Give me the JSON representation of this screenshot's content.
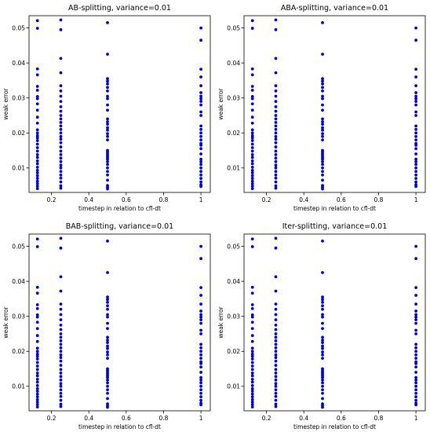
{
  "style": {
    "point_color": "#0000cc",
    "axis_color": "#000000",
    "background": "#ffffff"
  },
  "chart_data": [
    {
      "type": "scatter",
      "title": "AB-splitting, variance=0.01",
      "xlabel": "timestep in relation to cfl-dt",
      "ylabel": "weak error",
      "xlim": [
        0.08,
        1.05
      ],
      "ylim": [
        0.003,
        0.0535
      ],
      "xticks": [
        0.2,
        0.4,
        0.6,
        0.8,
        1.0
      ],
      "yticks": [
        0.01,
        0.02,
        0.03,
        0.04,
        0.05
      ],
      "grid": false,
      "series": [
        {
          "x": 0.125,
          "y": [
            0.0521,
            0.0499,
            0.0383,
            0.0366,
            0.0333,
            0.0322,
            0.0304,
            0.0298,
            0.0283,
            0.0265,
            0.0245,
            0.0228,
            0.0209,
            0.02,
            0.0192,
            0.0186,
            0.0178,
            0.0168,
            0.0158,
            0.0148,
            0.0138,
            0.013,
            0.012,
            0.0112,
            0.0102,
            0.0093,
            0.0086,
            0.0078,
            0.007,
            0.0062,
            0.0055,
            0.0048,
            0.0041
          ]
        },
        {
          "x": 0.25,
          "y": [
            0.0523,
            0.0495,
            0.0413,
            0.0372,
            0.0335,
            0.032,
            0.0305,
            0.029,
            0.0275,
            0.0262,
            0.025,
            0.024,
            0.023,
            0.022,
            0.021,
            0.02,
            0.019,
            0.0182,
            0.0172,
            0.016,
            0.0148,
            0.0138,
            0.0128,
            0.0118,
            0.0108,
            0.01,
            0.009,
            0.008,
            0.0071,
            0.006,
            0.0049,
            0.0042
          ]
        },
        {
          "x": 0.5,
          "y": [
            0.0515,
            0.0425,
            0.0355,
            0.0348,
            0.034,
            0.033,
            0.032,
            0.0305,
            0.0298,
            0.028,
            0.0265,
            0.024,
            0.0232,
            0.0225,
            0.0215,
            0.0208,
            0.0198,
            0.019,
            0.018,
            0.015,
            0.0145,
            0.014,
            0.0135,
            0.013,
            0.0125,
            0.0118,
            0.011,
            0.01,
            0.009,
            0.008,
            0.0065,
            0.005,
            0.0045,
            0.004
          ]
        },
        {
          "x": 1.0,
          "y": [
            0.05,
            0.0465,
            0.0382,
            0.036,
            0.0335,
            0.0315,
            0.0305,
            0.0298,
            0.029,
            0.028,
            0.026,
            0.025,
            0.022,
            0.021,
            0.02,
            0.019,
            0.018,
            0.017,
            0.0165,
            0.0155,
            0.014,
            0.0125,
            0.0118,
            0.011,
            0.01,
            0.009,
            0.008,
            0.007,
            0.006,
            0.0052,
            0.0047
          ]
        }
      ]
    },
    {
      "type": "scatter",
      "title": "ABA-splitting, variance=0.01",
      "xlabel": "timestep in relation to cfl-dt",
      "ylabel": "weak error",
      "xlim": [
        0.08,
        1.05
      ],
      "ylim": [
        0.003,
        0.0535
      ],
      "xticks": [
        0.2,
        0.4,
        0.6,
        0.8,
        1.0
      ],
      "yticks": [
        0.01,
        0.02,
        0.03,
        0.04,
        0.05
      ],
      "grid": false,
      "series": [
        {
          "x": 0.125,
          "y": [
            0.0521,
            0.0499,
            0.0383,
            0.0366,
            0.0333,
            0.0322,
            0.0304,
            0.0298,
            0.0283,
            0.0265,
            0.0245,
            0.0228,
            0.0209,
            0.02,
            0.0192,
            0.0186,
            0.0178,
            0.0168,
            0.0158,
            0.0148,
            0.0138,
            0.013,
            0.012,
            0.0112,
            0.0102,
            0.0093,
            0.0086,
            0.0078,
            0.007,
            0.0062,
            0.0055,
            0.0048,
            0.0041
          ]
        },
        {
          "x": 0.25,
          "y": [
            0.0523,
            0.0495,
            0.0413,
            0.0372,
            0.0335,
            0.032,
            0.0305,
            0.029,
            0.0275,
            0.0262,
            0.025,
            0.024,
            0.023,
            0.022,
            0.021,
            0.02,
            0.019,
            0.0182,
            0.0172,
            0.016,
            0.0148,
            0.0138,
            0.0128,
            0.0118,
            0.0108,
            0.01,
            0.009,
            0.008,
            0.0071,
            0.006,
            0.0049,
            0.0042
          ]
        },
        {
          "x": 0.5,
          "y": [
            0.0515,
            0.0425,
            0.0355,
            0.0348,
            0.034,
            0.033,
            0.032,
            0.0305,
            0.0298,
            0.028,
            0.0265,
            0.024,
            0.0232,
            0.0225,
            0.0215,
            0.0208,
            0.0198,
            0.019,
            0.018,
            0.015,
            0.0145,
            0.014,
            0.0135,
            0.013,
            0.0125,
            0.0118,
            0.011,
            0.01,
            0.009,
            0.008,
            0.0065,
            0.005,
            0.0045,
            0.004
          ]
        },
        {
          "x": 1.0,
          "y": [
            0.05,
            0.0465,
            0.0382,
            0.036,
            0.0335,
            0.0315,
            0.0305,
            0.0298,
            0.029,
            0.028,
            0.026,
            0.025,
            0.022,
            0.021,
            0.02,
            0.019,
            0.018,
            0.017,
            0.0165,
            0.0155,
            0.014,
            0.0125,
            0.0118,
            0.011,
            0.01,
            0.009,
            0.008,
            0.007,
            0.006,
            0.0052,
            0.0047
          ]
        }
      ]
    },
    {
      "type": "scatter",
      "title": "BAB-splitting, variance=0.01",
      "xlabel": "timestep in relation to cfl-dt",
      "ylabel": "weak error",
      "xlim": [
        0.08,
        1.05
      ],
      "ylim": [
        0.003,
        0.0535
      ],
      "xticks": [
        0.2,
        0.4,
        0.6,
        0.8,
        1.0
      ],
      "yticks": [
        0.01,
        0.02,
        0.03,
        0.04,
        0.05
      ],
      "grid": false,
      "series": [
        {
          "x": 0.125,
          "y": [
            0.0521,
            0.0499,
            0.0383,
            0.0366,
            0.0333,
            0.0322,
            0.0304,
            0.0298,
            0.0283,
            0.0265,
            0.0245,
            0.0228,
            0.0209,
            0.02,
            0.0192,
            0.0186,
            0.0178,
            0.0168,
            0.0158,
            0.0148,
            0.0138,
            0.013,
            0.012,
            0.0112,
            0.0102,
            0.0093,
            0.0086,
            0.0078,
            0.007,
            0.0062,
            0.0055,
            0.0048,
            0.0041
          ]
        },
        {
          "x": 0.25,
          "y": [
            0.0523,
            0.0495,
            0.0413,
            0.0372,
            0.0335,
            0.032,
            0.0305,
            0.029,
            0.0275,
            0.0262,
            0.025,
            0.024,
            0.023,
            0.022,
            0.021,
            0.02,
            0.019,
            0.0182,
            0.0172,
            0.016,
            0.0148,
            0.0138,
            0.0128,
            0.0118,
            0.0108,
            0.01,
            0.009,
            0.008,
            0.0071,
            0.006,
            0.0049,
            0.0042
          ]
        },
        {
          "x": 0.5,
          "y": [
            0.0515,
            0.0425,
            0.0355,
            0.0348,
            0.034,
            0.033,
            0.032,
            0.0305,
            0.0298,
            0.028,
            0.0265,
            0.024,
            0.0232,
            0.0225,
            0.0215,
            0.0208,
            0.0198,
            0.019,
            0.018,
            0.015,
            0.0145,
            0.014,
            0.0135,
            0.013,
            0.0125,
            0.0118,
            0.011,
            0.01,
            0.009,
            0.008,
            0.0065,
            0.005,
            0.0045,
            0.004
          ]
        },
        {
          "x": 1.0,
          "y": [
            0.05,
            0.0465,
            0.0382,
            0.036,
            0.0335,
            0.0315,
            0.0305,
            0.0298,
            0.029,
            0.028,
            0.026,
            0.025,
            0.022,
            0.021,
            0.02,
            0.019,
            0.018,
            0.017,
            0.0165,
            0.0155,
            0.014,
            0.0125,
            0.0118,
            0.011,
            0.01,
            0.009,
            0.008,
            0.007,
            0.006,
            0.0052,
            0.0047
          ]
        }
      ]
    },
    {
      "type": "scatter",
      "title": "Iter-splitting, variance=0.01",
      "xlabel": "timestep in relation to cfl-dt",
      "ylabel": "weak error",
      "xlim": [
        0.08,
        1.05
      ],
      "ylim": [
        0.003,
        0.0535
      ],
      "xticks": [
        0.2,
        0.4,
        0.6,
        0.8,
        1.0
      ],
      "yticks": [
        0.01,
        0.02,
        0.03,
        0.04,
        0.05
      ],
      "grid": false,
      "series": [
        {
          "x": 0.125,
          "y": [
            0.0521,
            0.0499,
            0.0383,
            0.0366,
            0.0333,
            0.0322,
            0.0304,
            0.0298,
            0.0283,
            0.0265,
            0.0245,
            0.0228,
            0.0209,
            0.02,
            0.0192,
            0.0186,
            0.0178,
            0.0168,
            0.0158,
            0.0148,
            0.0138,
            0.013,
            0.012,
            0.0112,
            0.0102,
            0.0093,
            0.0086,
            0.0078,
            0.007,
            0.0062,
            0.0055,
            0.0048,
            0.0041
          ]
        },
        {
          "x": 0.25,
          "y": [
            0.0523,
            0.0495,
            0.0413,
            0.0372,
            0.0335,
            0.032,
            0.0305,
            0.029,
            0.0275,
            0.0262,
            0.025,
            0.024,
            0.023,
            0.022,
            0.021,
            0.02,
            0.019,
            0.0182,
            0.0172,
            0.016,
            0.0148,
            0.0138,
            0.0128,
            0.0118,
            0.0108,
            0.01,
            0.009,
            0.008,
            0.0071,
            0.006,
            0.0049,
            0.0042
          ]
        },
        {
          "x": 0.5,
          "y": [
            0.0515,
            0.0425,
            0.0355,
            0.0348,
            0.034,
            0.033,
            0.032,
            0.0305,
            0.0298,
            0.028,
            0.0265,
            0.024,
            0.0232,
            0.0225,
            0.0215,
            0.0208,
            0.0198,
            0.019,
            0.018,
            0.015,
            0.0145,
            0.014,
            0.0135,
            0.013,
            0.0125,
            0.0118,
            0.011,
            0.01,
            0.009,
            0.008,
            0.0065,
            0.005,
            0.0045,
            0.004
          ]
        },
        {
          "x": 1.0,
          "y": [
            0.05,
            0.0465,
            0.0382,
            0.036,
            0.0335,
            0.0315,
            0.0305,
            0.0298,
            0.029,
            0.028,
            0.026,
            0.025,
            0.022,
            0.021,
            0.02,
            0.019,
            0.018,
            0.017,
            0.0165,
            0.0155,
            0.014,
            0.0125,
            0.0118,
            0.011,
            0.01,
            0.009,
            0.008,
            0.007,
            0.006,
            0.0052,
            0.0047
          ]
        }
      ]
    }
  ]
}
